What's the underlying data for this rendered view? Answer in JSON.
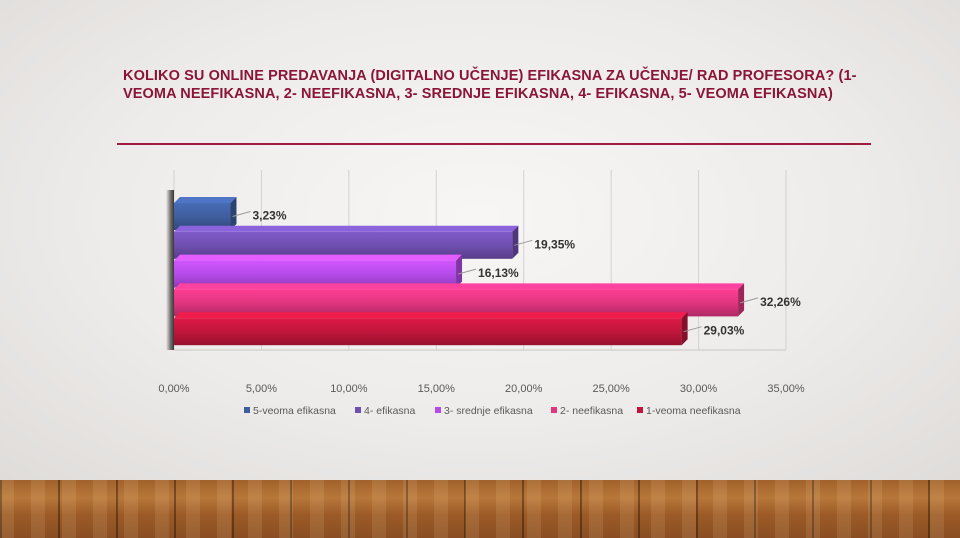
{
  "slide": {
    "title": "KOLIKO SU ONLINE PREDAVANJA (DIGITALNO UČENJE) EFIKASNA ZA UČENJE/ RAD PROFESORA? (1-VEOMA NEEFIKASNA, 2- NEEFIKASNA, 3- SREDNJE EFIKASNA, 4- EFIKASNA,  5- VEOMA EFIKASNA)"
  },
  "chart_data": {
    "type": "bar",
    "orientation": "horizontal",
    "title": "",
    "xlabel": "",
    "ylabel": "",
    "xlim": [
      0,
      35
    ],
    "x_ticks": [
      "0,00%",
      "5,00%",
      "10,00%",
      "15,00%",
      "20,00%",
      "25,00%",
      "30,00%",
      "35,00%"
    ],
    "grid": true,
    "legend_position": "bottom",
    "series": [
      {
        "name": "5-veoma efikasna",
        "value": 3.23,
        "label": "3,23%",
        "color": "#3f5e9e"
      },
      {
        "name": "4- efikasna",
        "value": 19.35,
        "label": "19,35%",
        "color": "#6f4fb0"
      },
      {
        "name": "3- srednje efikasna",
        "value": 16.13,
        "label": "16,13%",
        "color": "#b64bea"
      },
      {
        "name": "2- neefikasna",
        "value": 32.26,
        "label": "32,26%",
        "color": "#e0357f"
      },
      {
        "name": "1-veoma neefikasna",
        "value": 29.03,
        "label": "29,03%",
        "color": "#c0163c"
      }
    ]
  }
}
